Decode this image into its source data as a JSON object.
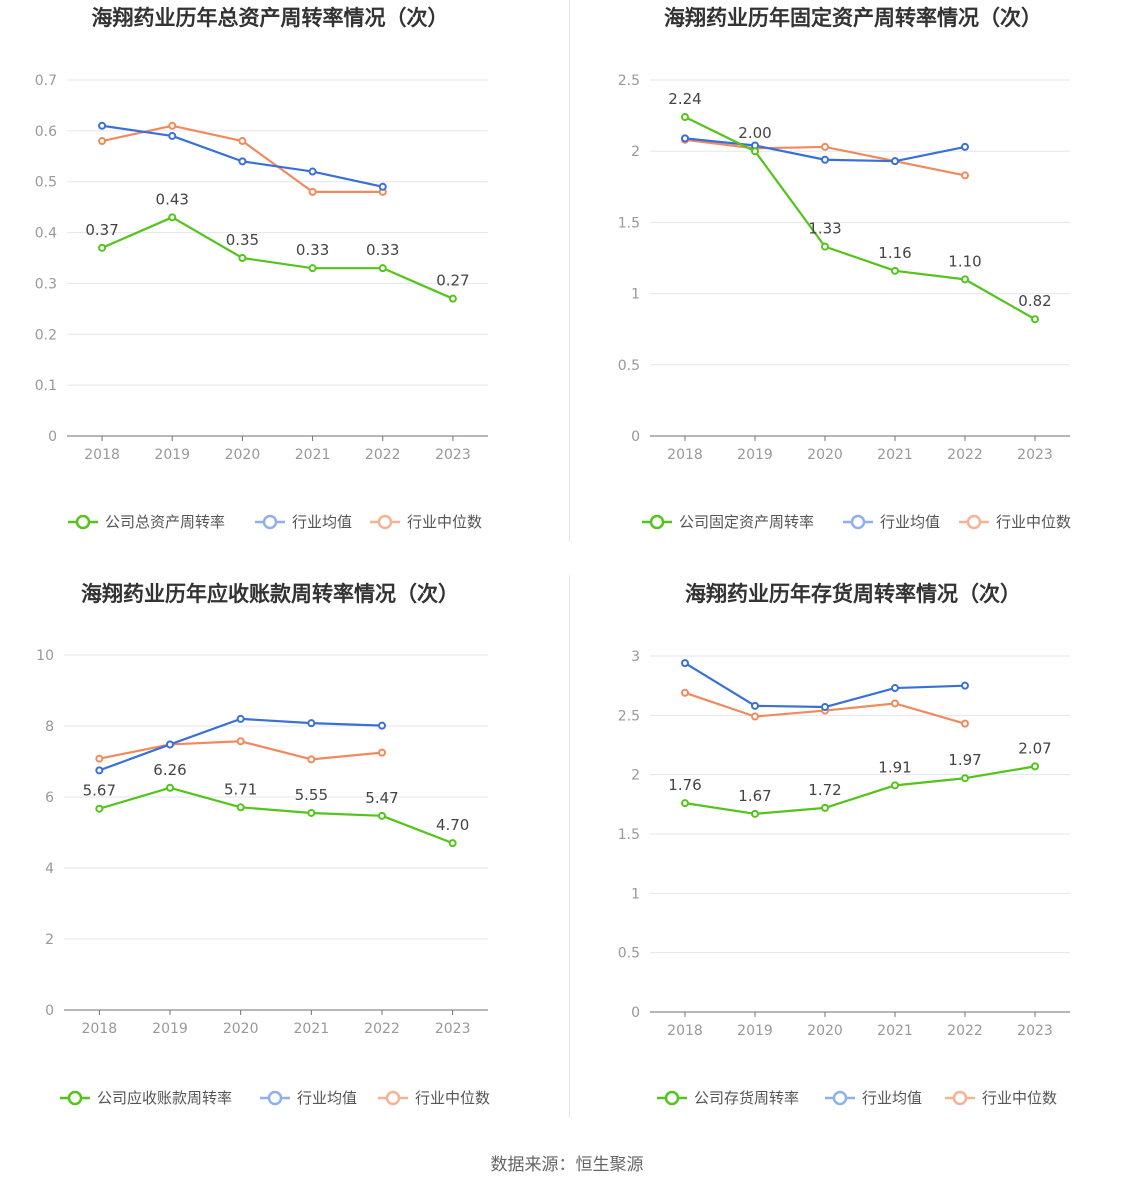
{
  "source": "数据来源：恒生聚源",
  "colors": {
    "company": "#52c41a",
    "avg": "#3b6fd8",
    "median": "#f08a5d",
    "grid": "#e3e6ef",
    "axis": "#6e7079",
    "tick": "#999999",
    "title": "#333333",
    "label": "#444444"
  },
  "chart_data": [
    {
      "type": "line",
      "title": "海翔药业历年总资产周转率情况（次）",
      "categories": [
        "2018",
        "2019",
        "2020",
        "2021",
        "2022",
        "2023"
      ],
      "ylim": [
        0,
        0.7
      ],
      "yticks": [
        "0",
        "0.1",
        "0.2",
        "0.3",
        "0.4",
        "0.5",
        "0.6",
        "0.7"
      ],
      "grid": true,
      "legend": "bottom",
      "series": [
        {
          "name": "公司总资产周转率",
          "values": [
            0.37,
            0.43,
            0.35,
            0.33,
            0.33,
            0.27
          ],
          "labels": [
            "0.37",
            "0.43",
            "0.35",
            "0.33",
            "0.33",
            "0.27"
          ]
        },
        {
          "name": "行业均值",
          "values": [
            0.61,
            0.59,
            0.54,
            0.52,
            0.49,
            null
          ]
        },
        {
          "name": "行业中位数",
          "values": [
            0.58,
            0.61,
            0.58,
            0.48,
            0.48,
            null
          ]
        }
      ]
    },
    {
      "type": "line",
      "title": "海翔药业历年固定资产周转率情况（次）",
      "categories": [
        "2018",
        "2019",
        "2020",
        "2021",
        "2022",
        "2023"
      ],
      "ylim": [
        0,
        2.5
      ],
      "yticks": [
        "0",
        "0.5",
        "1",
        "1.5",
        "2",
        "2.5"
      ],
      "grid": true,
      "legend": "bottom",
      "series": [
        {
          "name": "公司固定资产周转率",
          "values": [
            2.24,
            2.0,
            1.33,
            1.16,
            1.1,
            0.82
          ],
          "labels": [
            "2.24",
            "2.00",
            "1.33",
            "1.16",
            "1.10",
            "0.82"
          ]
        },
        {
          "name": "行业均值",
          "values": [
            2.09,
            2.04,
            1.94,
            1.93,
            2.03,
            null
          ]
        },
        {
          "name": "行业中位数",
          "values": [
            2.08,
            2.02,
            2.03,
            1.93,
            1.83,
            null
          ]
        }
      ]
    },
    {
      "type": "line",
      "title": "海翔药业历年应收账款周转率情况（次）",
      "categories": [
        "2018",
        "2019",
        "2020",
        "2021",
        "2022",
        "2023"
      ],
      "ylim": [
        0,
        10
      ],
      "yticks": [
        "0",
        "2",
        "4",
        "6",
        "8",
        "10"
      ],
      "grid": true,
      "legend": "bottom",
      "series": [
        {
          "name": "公司应收账款周转率",
          "values": [
            5.67,
            6.26,
            5.71,
            5.55,
            5.47,
            4.7
          ],
          "labels": [
            "5.67",
            "6.26",
            "5.71",
            "5.55",
            "5.47",
            "4.70"
          ]
        },
        {
          "name": "行业均值",
          "values": [
            6.75,
            7.48,
            8.2,
            8.08,
            8.01,
            null
          ]
        },
        {
          "name": "行业中位数",
          "values": [
            7.08,
            7.48,
            7.57,
            7.06,
            7.25,
            null
          ]
        }
      ]
    },
    {
      "type": "line",
      "title": "海翔药业历年存货周转率情况（次）",
      "categories": [
        "2018",
        "2019",
        "2020",
        "2021",
        "2022",
        "2023"
      ],
      "ylim": [
        0,
        3
      ],
      "yticks": [
        "0",
        "0.5",
        "1",
        "1.5",
        "2",
        "2.5",
        "3"
      ],
      "grid": true,
      "legend": "bottom",
      "series": [
        {
          "name": "公司存货周转率",
          "values": [
            1.76,
            1.67,
            1.72,
            1.91,
            1.97,
            2.07
          ],
          "labels": [
            "1.76",
            "1.67",
            "1.72",
            "1.91",
            "1.97",
            "2.07"
          ]
        },
        {
          "name": "行业均值",
          "values": [
            2.94,
            2.58,
            2.57,
            2.73,
            2.75,
            null
          ]
        },
        {
          "name": "行业中位数",
          "values": [
            2.69,
            2.49,
            2.54,
            2.6,
            2.43,
            null
          ]
        }
      ]
    }
  ]
}
